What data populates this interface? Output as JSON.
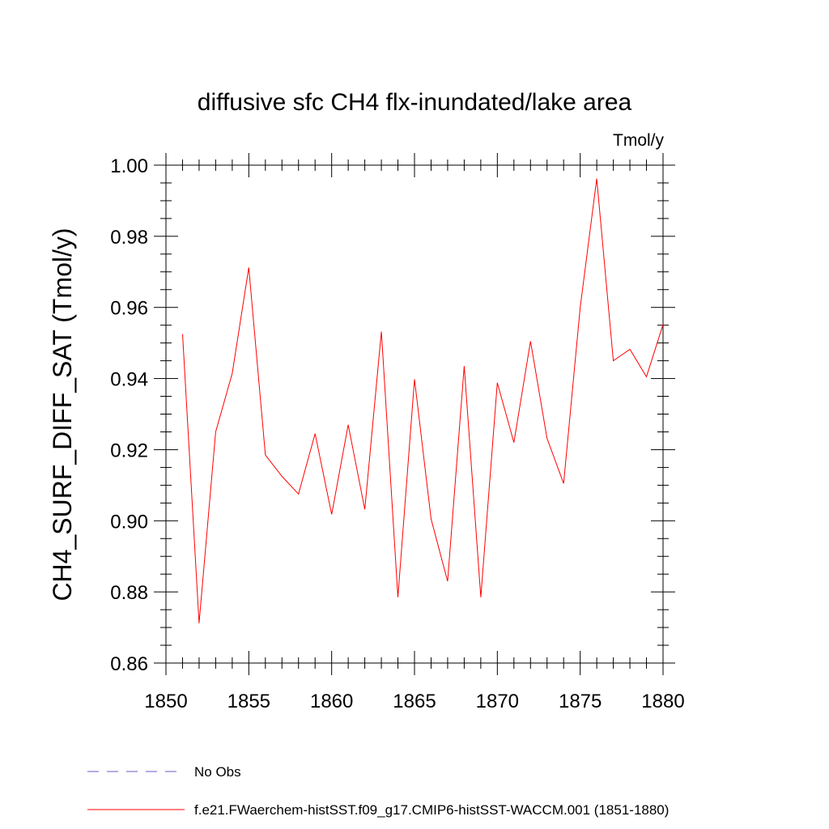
{
  "chart_data": {
    "type": "line",
    "title": "diffusive sfc CH4 flx-inundated/lake area",
    "units": "Tmol/y",
    "ylabel": "CH4_SURF_DIFF_SAT  (Tmol/y)",
    "xlabel": "",
    "xlim": [
      1850,
      1880
    ],
    "ylim": [
      0.86,
      1.0
    ],
    "x_ticks": [
      1850,
      1855,
      1860,
      1865,
      1870,
      1875,
      1880
    ],
    "y_ticks": [
      0.86,
      0.88,
      0.9,
      0.92,
      0.94,
      0.96,
      0.98,
      1.0
    ],
    "y_tick_labels": [
      "0.86",
      "0.88",
      "0.90",
      "0.92",
      "0.94",
      "0.96",
      "0.98",
      "1.00"
    ],
    "grid": false,
    "series": [
      {
        "name": "f.e21.FWaerchem-histSST.f09_g17.CMIP6-histSST-WACCM.001 (1851-1880)",
        "color": "#ff0000",
        "x": [
          1851,
          1852,
          1853,
          1854,
          1855,
          1856,
          1857,
          1858,
          1859,
          1860,
          1861,
          1862,
          1863,
          1864,
          1865,
          1866,
          1867,
          1868,
          1869,
          1870,
          1871,
          1872,
          1873,
          1874,
          1875,
          1876,
          1877,
          1878,
          1879,
          1880
        ],
        "y": [
          0.9525,
          0.8712,
          0.925,
          0.9415,
          0.9712,
          0.9185,
          0.9125,
          0.9075,
          0.9245,
          0.9018,
          0.927,
          0.9032,
          0.9532,
          0.8785,
          0.9398,
          0.9005,
          0.883,
          0.9435,
          0.8785,
          0.9388,
          0.922,
          0.9505,
          0.9232,
          0.9105,
          0.96,
          0.9962,
          0.945,
          0.9482,
          0.9405,
          0.9552
        ]
      }
    ],
    "legend": {
      "placement": "bottom-left",
      "entries": [
        {
          "label": "No Obs",
          "color": "#6a5acd",
          "style": "dashed"
        },
        {
          "label": "f.e21.FWaerchem-histSST.f09_g17.CMIP6-histSST-WACCM.001 (1851-1880)",
          "color": "#ff0000",
          "style": "solid"
        }
      ]
    }
  }
}
